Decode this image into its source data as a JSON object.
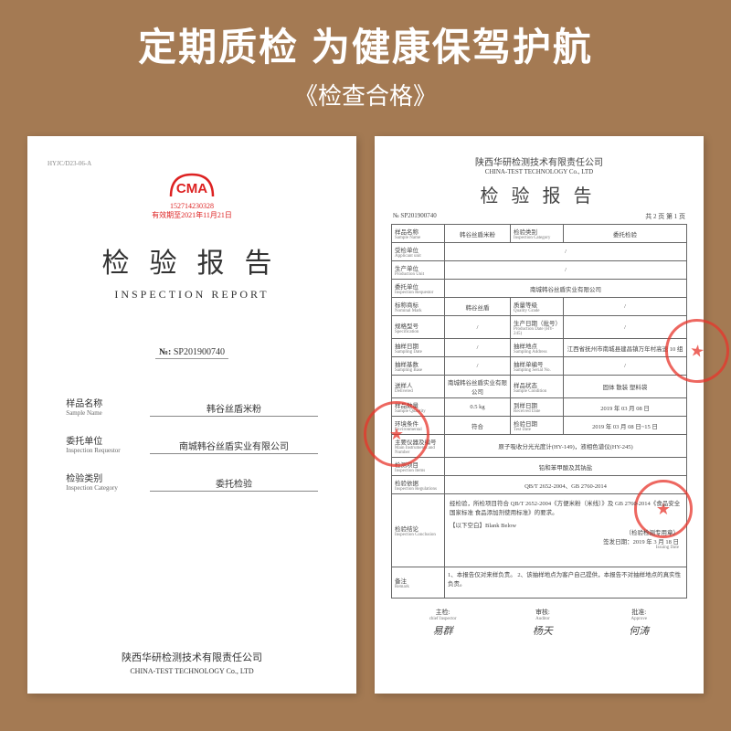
{
  "header": {
    "main": "定期质检 为健康保驾护航",
    "sub": "《检查合格》"
  },
  "colors": {
    "bg": "#a47a53",
    "paper": "#ffffff",
    "stamp": "#e8352b",
    "cma": "#d22222",
    "text": "#333333"
  },
  "left": {
    "topcode": "HYJC/D23-06-A",
    "cma_label": "CMA",
    "cma_number": "152714230328",
    "cma_expire": "有效期至2021年11月21日",
    "title_cn": "检验报告",
    "title_en": "INSPECTION  REPORT",
    "no_label": "№:",
    "no_value": "SP201900740",
    "rows": [
      {
        "cn": "样品名称",
        "en": "Sample Name",
        "val": "韩谷丝盾米粉"
      },
      {
        "cn": "委托单位",
        "en": "Inspection Requestor",
        "val": "南城韩谷丝盾实业有限公司"
      },
      {
        "cn": "检验类别",
        "en": "Inspection Category",
        "val": "委托检验"
      }
    ],
    "footer_cn": "陕西华研检测技术有限责任公司",
    "footer_en": "CHINA-TEST TECHNOLOGY Co., LTD"
  },
  "right": {
    "company_cn": "陕西华研检测技术有限责任公司",
    "company_en": "CHINA-TEST TECHNOLOGY Co., LTD",
    "title": "检验报告",
    "no_label": "№ SP201900740",
    "page": "共 2 页  第 1 页",
    "rows": [
      {
        "l1cn": "样品名称",
        "l1en": "Sample Name",
        "v1": "韩谷丝盾米粉",
        "l2cn": "检验类别",
        "l2en": "Inspection Category",
        "v2": "委托检验"
      },
      {
        "l1cn": "受检单位",
        "l1en": "Applicant unit",
        "v1": "/",
        "span": true
      },
      {
        "l1cn": "生产单位",
        "l1en": "Production Unit",
        "v1": "/",
        "span": true
      },
      {
        "l1cn": "委托单位",
        "l1en": "Inspection Requestor",
        "v1": "南城韩谷丝盾实业有限公司",
        "span": true
      },
      {
        "l1cn": "标称商标",
        "l1en": "Nominal Mark",
        "v1": "韩谷丝盾",
        "l2cn": "质量等级",
        "l2en": "Quality Grade",
        "v2": "/"
      },
      {
        "l1cn": "规格型号",
        "l1en": "Specification",
        "v1": "/",
        "l2cn": "生产日期（批号）",
        "l2en": "Production Date (HY-245)",
        "v2": "/"
      },
      {
        "l1cn": "抽样日期",
        "l1en": "Sampling Date",
        "v1": "/",
        "l2cn": "抽样地点",
        "l2en": "Sampling Address",
        "v2": "江西省抚州市南城县建昌镇万年村高速 10 组"
      },
      {
        "l1cn": "抽样基数",
        "l1en": "Sampling Base",
        "v1": "/",
        "l2cn": "抽样单编号",
        "l2en": "Sampling Serial No.",
        "v2": "/"
      },
      {
        "l1cn": "送样人",
        "l1en": "Delivered",
        "v1": "南城韩谷丝盾实业有限公司",
        "l2cn": "样品状态",
        "l2en": "Sample Condition",
        "v2": "固体  散装  塑料袋"
      },
      {
        "l1cn": "样品数量",
        "l1en": "Sample Quantity",
        "v1": "0.5 kg",
        "l2cn": "到样日期",
        "l2en": "Received Date",
        "v2": "2019 年 03 月 08 日"
      },
      {
        "l1cn": "环境条件",
        "l1en": "Environmental",
        "v1": "符合",
        "l2cn": "检验日期",
        "l2en": "Test Date",
        "v2": "2019 年 03 月 08 日~15 日"
      },
      {
        "l1cn": "主要仪器及编号",
        "l1en": "Main Instruments and Number",
        "v1": "原子吸收分光光度计(HY-149)，液相色谱仪(HY-245)",
        "span": true
      },
      {
        "l1cn": "检测项目",
        "l1en": "Inspection Items",
        "v1": "铅和苯甲酸及其钠盐",
        "span": true
      },
      {
        "l1cn": "检验依据",
        "l1en": "Inspection Regulations",
        "v1": "QB/T 2652-2004、GB 2760-2014",
        "span": true
      }
    ],
    "conclusion_label_cn": "检验结论",
    "conclusion_label_en": "Inspection Conclusion",
    "conclusion_text1": "经检验，所检项目符合 QB/T 2652-2004《方便米粉（米线）》及 GB 2760-2014《食品安全国家标准 食品添加剂使用标准》的要求。",
    "conclusion_text2": "【以下空白】Blank Below",
    "conclusion_seal": "（检验检测专用章）",
    "conclusion_date": "签发日期：2019 年 3 月 18 日",
    "conclusion_issue": "Issuing Date",
    "remark_label_cn": "备注",
    "remark_label_en": "Remark",
    "remark_text": "1、本报告仅对来样负责。\n2、该抽样地点为客户自己提供，本报告不对抽样地点的真实性负责。",
    "sigs": [
      {
        "cn": "主检:",
        "en": "chief Inspector",
        "sig": "易群"
      },
      {
        "cn": "审核:",
        "en": "Auditor",
        "sig": "杨天"
      },
      {
        "cn": "批准:",
        "en": "Approve",
        "sig": "何涛"
      }
    ]
  }
}
